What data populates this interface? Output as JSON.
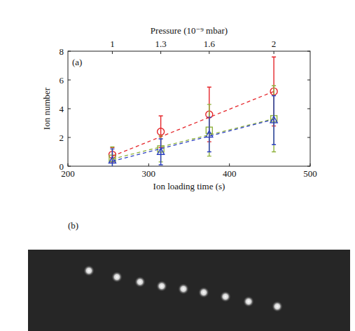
{
  "chart_data": {
    "type": "scatter",
    "title": "(a)",
    "x_label": "Ion loading time (s)",
    "y_label": "Ion number",
    "x2_label": "Pressure (10⁻⁹ mbar)",
    "xlim": [
      200,
      500
    ],
    "xticks": [
      200,
      300,
      400,
      500
    ],
    "ylim": [
      0,
      8
    ],
    "yticks": [
      0,
      2,
      4,
      6,
      8
    ],
    "x2lim": [
      0.725,
      2.225
    ],
    "x2ticks": [
      1,
      1.3,
      1.6,
      2
    ],
    "grid": false,
    "series": [
      {
        "type": "scatter",
        "color": "#e5262b",
        "marker": "circle",
        "x": [
          255,
          315,
          375,
          455
        ],
        "values": [
          0.8,
          2.4,
          3.6,
          5.2
        ],
        "errors": [
          0.5,
          1.1,
          1.9,
          2.4
        ]
      },
      {
        "type": "scatter",
        "color": "#8fb23c",
        "marker": "square",
        "x": [
          255,
          315,
          375,
          455
        ],
        "values": [
          0.55,
          1.2,
          2.5,
          3.3
        ],
        "errors": [
          0.8,
          0.9,
          1.8,
          2.3
        ]
      },
      {
        "type": "scatter",
        "color": "#2b3fc0",
        "marker": "triangle",
        "x": [
          255,
          315,
          375,
          455
        ],
        "values": [
          0.4,
          1.0,
          2.2,
          3.2
        ],
        "errors": [
          0.8,
          0.9,
          1.2,
          1.7
        ]
      },
      {
        "type": "line",
        "color": "#e5262b",
        "line_style": "dashed",
        "x": [
          255,
          455
        ],
        "values": [
          0.7,
          5.2
        ]
      },
      {
        "type": "line",
        "color": "#8fb23c",
        "line_style": "dashed",
        "x": [
          255,
          455
        ],
        "values": [
          0.5,
          3.3
        ]
      },
      {
        "type": "line",
        "color": "#2b3fc0",
        "line_style": "dashed",
        "x": [
          255,
          455
        ],
        "values": [
          0.35,
          3.25
        ]
      }
    ]
  },
  "image_panel": {
    "label": "(b)"
  }
}
